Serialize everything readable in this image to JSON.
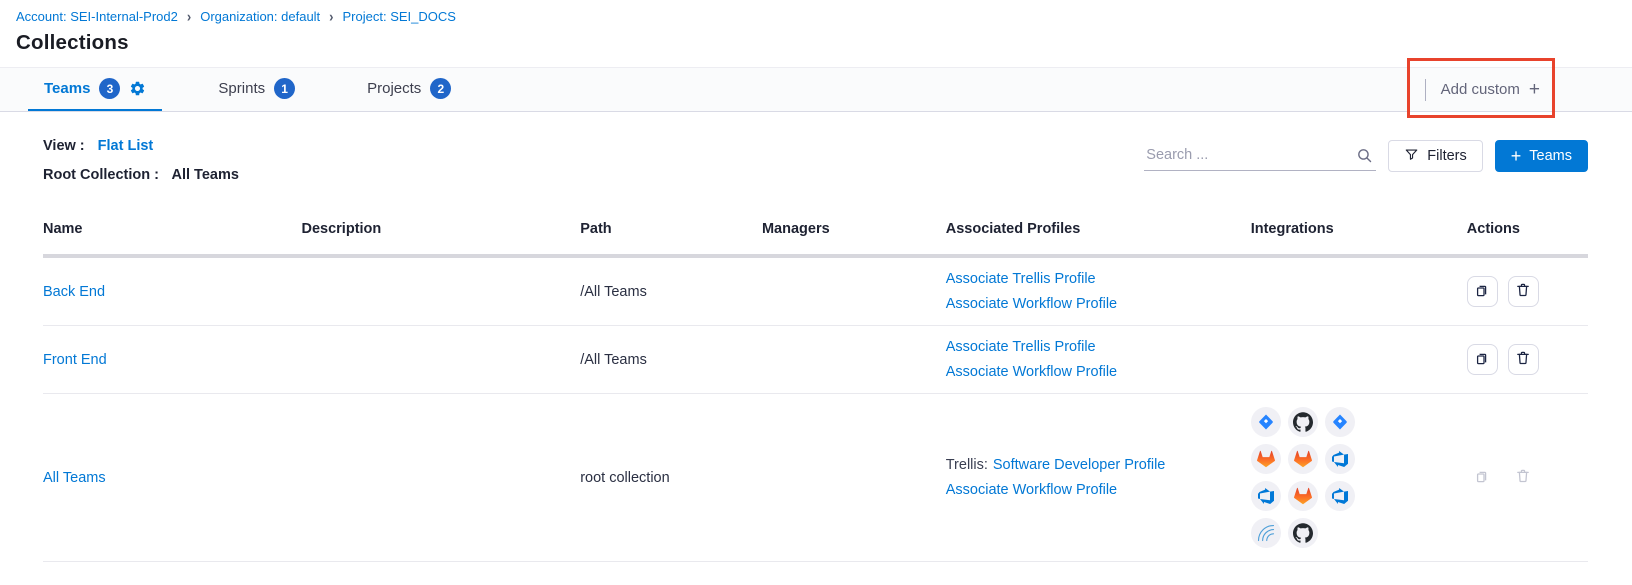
{
  "breadcrumb": {
    "items": [
      "Account: SEI-Internal-Prod2",
      "Organization: default",
      "Project: SEI_DOCS"
    ],
    "separator": "›"
  },
  "page_title": "Collections",
  "tab_bar": {
    "tabs": [
      {
        "label": "Teams",
        "count": "3",
        "active": true,
        "settings_icon": "gear-icon"
      },
      {
        "label": "Sprints",
        "count": "1",
        "active": false
      },
      {
        "label": "Projects",
        "count": "2",
        "active": false
      }
    ],
    "add_custom": {
      "label": "Add custom",
      "plus": "+"
    },
    "annotation": {
      "shape": "red-box",
      "color": "#e8432c"
    }
  },
  "toolbar": {
    "view_label": "View :",
    "view_value": "Flat List",
    "root_label": "Root Collection :",
    "root_value": "All Teams",
    "search_placeholder": "Search ...",
    "search_icon": "search-icon",
    "filters_label": "Filters",
    "filters_icon": "funnel-icon",
    "teams_button": {
      "plus": "+",
      "label": "Teams"
    }
  },
  "table": {
    "columns": [
      "Name",
      "Description",
      "Path",
      "Managers",
      "Associated Profiles",
      "Integrations",
      "Actions"
    ],
    "rows": [
      {
        "name": "Back End",
        "description": "",
        "path": "/All Teams",
        "managers": "",
        "profiles": [
          {
            "prefix": "",
            "link": "Associate Trellis Profile"
          },
          {
            "prefix": "",
            "link": "Associate Workflow Profile"
          }
        ],
        "integrations": [],
        "actions": {
          "icons": [
            "copy-icon",
            "trash-icon"
          ],
          "disabled": false
        }
      },
      {
        "name": "Front End",
        "description": "",
        "path": "/All Teams",
        "managers": "",
        "profiles": [
          {
            "prefix": "",
            "link": "Associate Trellis Profile"
          },
          {
            "prefix": "",
            "link": "Associate Workflow Profile"
          }
        ],
        "integrations": [],
        "actions": {
          "icons": [
            "copy-icon",
            "trash-icon"
          ],
          "disabled": false
        }
      },
      {
        "name": "All Teams",
        "description": "",
        "path": "root collection",
        "managers": "",
        "profiles": [
          {
            "prefix": "Trellis:",
            "link": "Software Developer Profile"
          },
          {
            "prefix": "",
            "link": "Associate Workflow Profile"
          }
        ],
        "integrations": [
          "jira",
          "github",
          "jira",
          "gitlab",
          "gitlab",
          "azure-devops",
          "azure-devops",
          "gitlab",
          "azure-devops",
          "sonarqube",
          "github"
        ],
        "actions": {
          "icons": [
            "copy-icon",
            "trash-icon"
          ],
          "disabled": true
        }
      }
    ]
  },
  "colors": {
    "accent_blue": "#0278d5",
    "badge_blue": "#2066c9",
    "annotation_red": "#e8432c"
  }
}
